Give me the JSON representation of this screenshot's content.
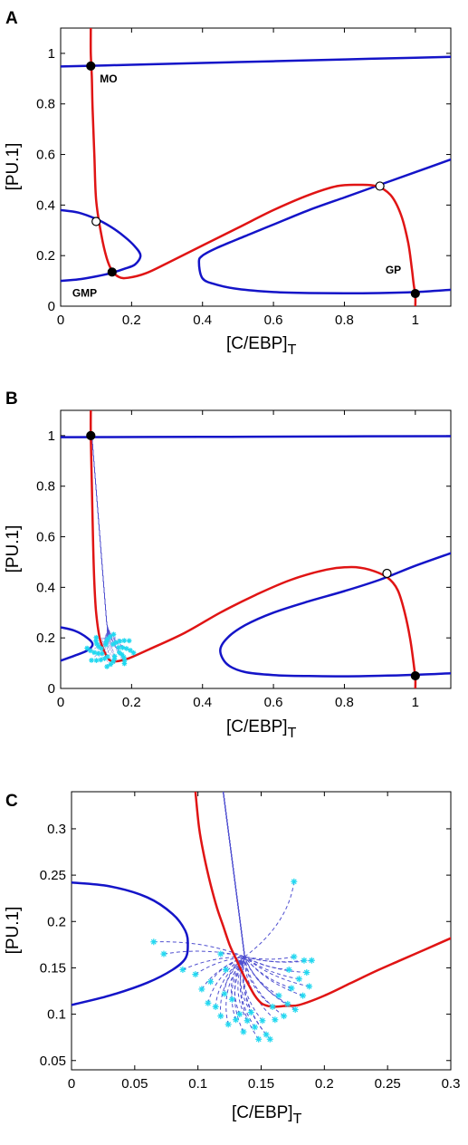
{
  "colors": {
    "nullcline_blue": "#1414c8",
    "nullcline_red": "#e01414",
    "trajectory": "#5050d0",
    "endpoint": "#20d8f0",
    "stable": "#000000",
    "unstable": "#ffffff"
  },
  "chart_data": [
    {
      "panel": "A",
      "type": "line",
      "xlabel": "[C/EBP]",
      "xlabel_sub": "T",
      "ylabel": "[PU.1]",
      "xlim": [
        0,
        1.1
      ],
      "ylim": [
        0,
        1.1
      ],
      "xticks": [
        0,
        0.2,
        0.4,
        0.6,
        0.8,
        1
      ],
      "xtick_labels": [
        "0",
        "0.2",
        "0.4",
        "0.6",
        "0.8",
        "1"
      ],
      "yticks": [
        0,
        0.2,
        0.4,
        0.6,
        0.8,
        1
      ],
      "ytick_labels": [
        "0",
        "0.2",
        "0.4",
        "0.6",
        "0.8",
        "1"
      ],
      "series": [
        {
          "kind": "blue",
          "x": [
            0,
            0.2,
            0.4,
            0.6,
            0.8,
            1.0,
            1.1
          ],
          "y": [
            0.948,
            0.955,
            0.962,
            0.969,
            0.976,
            0.983,
            0.986
          ]
        },
        {
          "kind": "blue",
          "x": [
            0,
            0.05,
            0.1,
            0.14,
            0.18,
            0.21,
            0.225,
            0.21,
            0.18,
            0.14,
            0.1,
            0.05,
            0
          ],
          "y": [
            0.38,
            0.37,
            0.345,
            0.315,
            0.275,
            0.235,
            0.2,
            0.165,
            0.148,
            0.13,
            0.118,
            0.106,
            0.1
          ]
        },
        {
          "kind": "blue",
          "x": [
            1.1,
            1.0,
            0.9,
            0.8,
            0.7,
            0.6,
            0.5,
            0.44,
            0.4,
            0.39,
            0.4,
            0.44,
            0.52,
            0.6,
            0.7,
            0.8,
            0.9,
            1.0,
            1.1
          ],
          "y": [
            0.065,
            0.056,
            0.052,
            0.051,
            0.052,
            0.056,
            0.068,
            0.085,
            0.11,
            0.175,
            0.2,
            0.23,
            0.277,
            0.323,
            0.38,
            0.43,
            0.48,
            0.53,
            0.58
          ]
        },
        {
          "kind": "red",
          "x": [
            0.085,
            0.085,
            0.088,
            0.09,
            0.095,
            0.1,
            0.115,
            0.13,
            0.145,
            0.165,
            0.19,
            0.24,
            0.3,
            0.4,
            0.5,
            0.6,
            0.7,
            0.78,
            0.84,
            0.89,
            0.93,
            0.96,
            0.98,
            0.99,
            0.995,
            1.0,
            1.0
          ],
          "y": [
            1.1,
            1.0,
            0.9,
            0.78,
            0.6,
            0.42,
            0.28,
            0.19,
            0.14,
            0.115,
            0.112,
            0.13,
            0.17,
            0.24,
            0.31,
            0.38,
            0.44,
            0.475,
            0.48,
            0.475,
            0.44,
            0.36,
            0.25,
            0.15,
            0.09,
            0.04,
            0
          ]
        }
      ],
      "fixed_points": [
        {
          "x": 0.085,
          "y": 0.95,
          "stable": true,
          "label": "MO"
        },
        {
          "x": 0.1,
          "y": 0.335,
          "stable": false
        },
        {
          "x": 0.145,
          "y": 0.135,
          "stable": true,
          "label": "GMP"
        },
        {
          "x": 0.9,
          "y": 0.475,
          "stable": false
        },
        {
          "x": 1.0,
          "y": 0.05,
          "stable": true,
          "label": "GP"
        }
      ]
    },
    {
      "panel": "B",
      "type": "line",
      "xlabel": "[C/EBP]",
      "xlabel_sub": "T",
      "ylabel": "[PU.1]",
      "xlim": [
        0,
        1.1
      ],
      "ylim": [
        0,
        1.1
      ],
      "xticks": [
        0,
        0.2,
        0.4,
        0.6,
        0.8,
        1
      ],
      "xtick_labels": [
        "0",
        "0.2",
        "0.4",
        "0.6",
        "0.8",
        "1"
      ],
      "yticks": [
        0,
        0.2,
        0.4,
        0.6,
        0.8,
        1
      ],
      "ytick_labels": [
        "0",
        "0.2",
        "0.4",
        "0.6",
        "0.8",
        "1"
      ],
      "series": [
        {
          "kind": "blue",
          "x": [
            0,
            0.4,
            0.8,
            1.1
          ],
          "y": [
            0.994,
            0.995,
            0.997,
            0.998
          ]
        },
        {
          "kind": "blue",
          "x": [
            0,
            0.04,
            0.075,
            0.09,
            0.075,
            0.04,
            0
          ],
          "y": [
            0.242,
            0.228,
            0.2,
            0.175,
            0.15,
            0.13,
            0.11
          ]
        },
        {
          "kind": "blue",
          "x": [
            1.1,
            1.0,
            0.9,
            0.8,
            0.7,
            0.6,
            0.52,
            0.47,
            0.45,
            0.47,
            0.52,
            0.6,
            0.7,
            0.8,
            0.9,
            1.0,
            1.1
          ],
          "y": [
            0.06,
            0.054,
            0.05,
            0.048,
            0.049,
            0.053,
            0.065,
            0.095,
            0.15,
            0.2,
            0.25,
            0.3,
            0.345,
            0.385,
            0.43,
            0.485,
            0.535
          ]
        },
        {
          "kind": "red",
          "x": [
            0.085,
            0.085,
            0.088,
            0.091,
            0.095,
            0.1,
            0.11,
            0.125,
            0.14,
            0.16,
            0.19,
            0.25,
            0.35,
            0.45,
            0.55,
            0.65,
            0.75,
            0.82,
            0.87,
            0.92,
            0.95,
            0.97,
            0.985,
            0.995,
            1.0,
            1.0
          ],
          "y": [
            1.1,
            1.0,
            0.8,
            0.6,
            0.42,
            0.3,
            0.2,
            0.14,
            0.11,
            0.108,
            0.118,
            0.155,
            0.22,
            0.3,
            0.37,
            0.43,
            0.47,
            0.48,
            0.47,
            0.44,
            0.39,
            0.3,
            0.2,
            0.1,
            0.04,
            0
          ]
        }
      ],
      "fixed_points": [
        {
          "x": 0.085,
          "y": 1.0,
          "stable": true
        },
        {
          "x": 0.92,
          "y": 0.455,
          "stable": false
        },
        {
          "x": 1.0,
          "y": 0.05,
          "stable": true
        }
      ],
      "trajectory_cluster": {
        "center": [
          0.14,
          0.15
        ],
        "count": 40
      }
    },
    {
      "panel": "C",
      "type": "line",
      "xlabel": "[C/EBP]",
      "xlabel_sub": "T",
      "ylabel": "[PU.1]",
      "xlim": [
        0,
        0.3
      ],
      "ylim": [
        0.04,
        0.34
      ],
      "xticks": [
        0,
        0.05,
        0.1,
        0.15,
        0.2,
        0.25,
        0.3
      ],
      "xtick_labels": [
        "0",
        "0.05",
        "0.1",
        "0.15",
        "0.2",
        "0.25",
        "0.3"
      ],
      "yticks": [
        0.05,
        0.1,
        0.15,
        0.2,
        0.25,
        0.3
      ],
      "ytick_labels": [
        "0.05",
        "0.1",
        "0.15",
        "0.2",
        "0.25",
        "0.3"
      ],
      "series": [
        {
          "kind": "blue",
          "x": [
            0,
            0.03,
            0.06,
            0.08,
            0.09,
            0.092,
            0.09,
            0.08,
            0.06,
            0.03,
            0
          ],
          "y": [
            0.242,
            0.238,
            0.226,
            0.208,
            0.19,
            0.175,
            0.16,
            0.148,
            0.134,
            0.12,
            0.11
          ]
        },
        {
          "kind": "red",
          "x": [
            0.098,
            0.101,
            0.105,
            0.11,
            0.115,
            0.12,
            0.125,
            0.13,
            0.135,
            0.14,
            0.145,
            0.15,
            0.155,
            0.16,
            0.17,
            0.18,
            0.2,
            0.22,
            0.24,
            0.26,
            0.28,
            0.3
          ],
          "y": [
            0.34,
            0.3,
            0.27,
            0.24,
            0.215,
            0.195,
            0.175,
            0.16,
            0.145,
            0.132,
            0.12,
            0.112,
            0.109,
            0.108,
            0.109,
            0.11,
            0.12,
            0.133,
            0.146,
            0.158,
            0.17,
            0.182
          ]
        }
      ],
      "trajectories": [
        {
          "x0": 0.065,
          "y0": 0.178
        },
        {
          "x0": 0.073,
          "y0": 0.165
        },
        {
          "x0": 0.088,
          "y0": 0.148
        },
        {
          "x0": 0.098,
          "y0": 0.143
        },
        {
          "x0": 0.103,
          "y0": 0.127
        },
        {
          "x0": 0.108,
          "y0": 0.112
        },
        {
          "x0": 0.11,
          "y0": 0.135
        },
        {
          "x0": 0.114,
          "y0": 0.108
        },
        {
          "x0": 0.118,
          "y0": 0.098
        },
        {
          "x0": 0.121,
          "y0": 0.122
        },
        {
          "x0": 0.124,
          "y0": 0.089
        },
        {
          "x0": 0.127,
          "y0": 0.116
        },
        {
          "x0": 0.13,
          "y0": 0.094
        },
        {
          "x0": 0.133,
          "y0": 0.1
        },
        {
          "x0": 0.136,
          "y0": 0.081
        },
        {
          "x0": 0.139,
          "y0": 0.093
        },
        {
          "x0": 0.142,
          "y0": 0.102
        },
        {
          "x0": 0.145,
          "y0": 0.086
        },
        {
          "x0": 0.148,
          "y0": 0.073
        },
        {
          "x0": 0.151,
          "y0": 0.093
        },
        {
          "x0": 0.154,
          "y0": 0.078
        },
        {
          "x0": 0.157,
          "y0": 0.073
        },
        {
          "x0": 0.159,
          "y0": 0.108
        },
        {
          "x0": 0.161,
          "y0": 0.094
        },
        {
          "x0": 0.164,
          "y0": 0.12
        },
        {
          "x0": 0.168,
          "y0": 0.098
        },
        {
          "x0": 0.171,
          "y0": 0.111
        },
        {
          "x0": 0.174,
          "y0": 0.128
        },
        {
          "x0": 0.177,
          "y0": 0.105
        },
        {
          "x0": 0.18,
          "y0": 0.138
        },
        {
          "x0": 0.183,
          "y0": 0.12
        },
        {
          "x0": 0.186,
          "y0": 0.145
        },
        {
          "x0": 0.188,
          "y0": 0.13
        },
        {
          "x0": 0.19,
          "y0": 0.158
        },
        {
          "x0": 0.184,
          "y0": 0.158
        },
        {
          "x0": 0.176,
          "y0": 0.162
        },
        {
          "x0": 0.172,
          "y0": 0.148
        },
        {
          "x0": 0.176,
          "y0": 0.243
        },
        {
          "x0": 0.118,
          "y0": 0.165
        },
        {
          "x0": 0.122,
          "y0": 0.148
        }
      ],
      "attractor": [
        0.137,
        0.162
      ]
    }
  ]
}
